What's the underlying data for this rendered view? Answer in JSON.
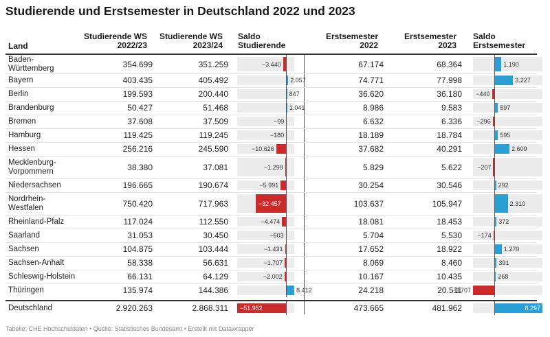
{
  "title": "Studierende und Erstsemester in Deutschland 2022 und 2023",
  "headers": {
    "land": "Land",
    "stud_2022": [
      "Studierende WS",
      "2022/23"
    ],
    "stud_2023": [
      "Studierende WS",
      "2023/24"
    ],
    "saldo_stud": [
      "Saldo",
      "Studierende"
    ],
    "erst_2022": [
      "Erstsemester",
      "2022"
    ],
    "erst_2023": [
      "Erstsemester",
      "2023"
    ],
    "saldo_erst": [
      "Saldo",
      "Erstsemester"
    ]
  },
  "colors": {
    "negative": "#cb2a2a",
    "positive": "#2b9fd4",
    "track": "#ececec"
  },
  "chart_data": {
    "type": "table",
    "columns": [
      "Land",
      "Studierende WS 2022/23",
      "Studierende WS 2023/24",
      "Saldo Studierende",
      "Erstsemester 2022",
      "Erstsemester 2023",
      "Saldo Erstsemester"
    ],
    "saldo_studierende_range": [
      -51952,
      8412
    ],
    "saldo_erstsemester_range": [
      -3707,
      8297
    ],
    "rows": [
      {
        "land": "Baden-Württemberg",
        "land_lines": [
          "Baden-",
          "Württemberg"
        ],
        "stud_2022": "354.699",
        "stud_2023": "351.259",
        "saldo_stud": -3440,
        "saldo_stud_label": "−3.440",
        "erst_2022": "67.174",
        "erst_2023": "68.364",
        "saldo_erst": 1190,
        "saldo_erst_label": "1.190"
      },
      {
        "land": "Bayern",
        "land_lines": [
          "Bayern"
        ],
        "stud_2022": "403.435",
        "stud_2023": "405.492",
        "saldo_stud": 2057,
        "saldo_stud_label": "2.057",
        "erst_2022": "74.771",
        "erst_2023": "77.998",
        "saldo_erst": 3227,
        "saldo_erst_label": "3.227"
      },
      {
        "land": "Berlin",
        "land_lines": [
          "Berlin"
        ],
        "stud_2022": "199.593",
        "stud_2023": "200.440",
        "saldo_stud": 847,
        "saldo_stud_label": "847",
        "erst_2022": "36.620",
        "erst_2023": "36.180",
        "saldo_erst": -440,
        "saldo_erst_label": "−440"
      },
      {
        "land": "Brandenburg",
        "land_lines": [
          "Brandenburg"
        ],
        "stud_2022": "50.427",
        "stud_2023": "51.468",
        "saldo_stud": 1041,
        "saldo_stud_label": "1.041",
        "erst_2022": "8.986",
        "erst_2023": "9.583",
        "saldo_erst": 597,
        "saldo_erst_label": "597"
      },
      {
        "land": "Bremen",
        "land_lines": [
          "Bremen"
        ],
        "stud_2022": "37.608",
        "stud_2023": "37.509",
        "saldo_stud": -99,
        "saldo_stud_label": "−99",
        "erst_2022": "6.632",
        "erst_2023": "6.336",
        "saldo_erst": -296,
        "saldo_erst_label": "−296"
      },
      {
        "land": "Hamburg",
        "land_lines": [
          "Hamburg"
        ],
        "stud_2022": "119.425",
        "stud_2023": "119.245",
        "saldo_stud": -180,
        "saldo_stud_label": "−180",
        "erst_2022": "18.189",
        "erst_2023": "18.784",
        "saldo_erst": 595,
        "saldo_erst_label": "595"
      },
      {
        "land": "Hessen",
        "land_lines": [
          "Hessen"
        ],
        "stud_2022": "256.216",
        "stud_2023": "245.590",
        "saldo_stud": -10626,
        "saldo_stud_label": "−10.626",
        "erst_2022": "37.682",
        "erst_2023": "40.291",
        "saldo_erst": 2609,
        "saldo_erst_label": "2.609"
      },
      {
        "land": "Mecklenburg-Vorpommern",
        "land_lines": [
          "Mecklenburg-",
          "Vorpommern"
        ],
        "stud_2022": "38.380",
        "stud_2023": "37.081",
        "saldo_stud": -1299,
        "saldo_stud_label": "−1.299",
        "erst_2022": "5.829",
        "erst_2023": "5.622",
        "saldo_erst": -207,
        "saldo_erst_label": "−207"
      },
      {
        "land": "Niedersachsen",
        "land_lines": [
          "Niedersachsen"
        ],
        "stud_2022": "196.665",
        "stud_2023": "190.674",
        "saldo_stud": -5991,
        "saldo_stud_label": "−5.991",
        "erst_2022": "30.254",
        "erst_2023": "30.546",
        "saldo_erst": 292,
        "saldo_erst_label": "292"
      },
      {
        "land": "Nordrhein-Westfalen",
        "land_lines": [
          "Nordrhein-",
          "Westfalen"
        ],
        "stud_2022": "750.420",
        "stud_2023": "717.963",
        "saldo_stud": -32457,
        "saldo_stud_label": "−32.457",
        "erst_2022": "103.637",
        "erst_2023": "105.947",
        "saldo_erst": 2310,
        "saldo_erst_label": "2.310"
      },
      {
        "land": "Rheinland-Pfalz",
        "land_lines": [
          "Rheinland-Pfalz"
        ],
        "stud_2022": "117.024",
        "stud_2023": "112.550",
        "saldo_stud": -4474,
        "saldo_stud_label": "−4.474",
        "erst_2022": "18.081",
        "erst_2023": "18.453",
        "saldo_erst": 372,
        "saldo_erst_label": "372"
      },
      {
        "land": "Saarland",
        "land_lines": [
          "Saarland"
        ],
        "stud_2022": "31.053",
        "stud_2023": "30.450",
        "saldo_stud": -603,
        "saldo_stud_label": "−603",
        "erst_2022": "5.704",
        "erst_2023": "5.530",
        "saldo_erst": -174,
        "saldo_erst_label": "−174"
      },
      {
        "land": "Sachsen",
        "land_lines": [
          "Sachsen"
        ],
        "stud_2022": "104.875",
        "stud_2023": "103.444",
        "saldo_stud": -1431,
        "saldo_stud_label": "−1.431",
        "erst_2022": "17.652",
        "erst_2023": "18.922",
        "saldo_erst": 1270,
        "saldo_erst_label": "1.270"
      },
      {
        "land": "Sachsen-Anhalt",
        "land_lines": [
          "Sachsen-Anhalt"
        ],
        "stud_2022": "58.338",
        "stud_2023": "56.631",
        "saldo_stud": -1707,
        "saldo_stud_label": "−1.707",
        "erst_2022": "8.069",
        "erst_2023": "8.460",
        "saldo_erst": 391,
        "saldo_erst_label": "391"
      },
      {
        "land": "Schleswig-Holstein",
        "land_lines": [
          "Schleswig-Holstein"
        ],
        "stud_2022": "66.131",
        "stud_2023": "64.129",
        "saldo_stud": -2002,
        "saldo_stud_label": "−2.002",
        "erst_2022": "10.167",
        "erst_2023": "10.435",
        "saldo_erst": 268,
        "saldo_erst_label": "268"
      },
      {
        "land": "Thüringen",
        "land_lines": [
          "Thüringen"
        ],
        "stud_2022": "135.974",
        "stud_2023": "144.386",
        "saldo_stud": 8412,
        "saldo_stud_label": "8.412",
        "erst_2022": "24.218",
        "erst_2023": "20.511",
        "saldo_erst": -3707,
        "saldo_erst_label": "−3.707"
      }
    ],
    "total": {
      "land": "Deutschland",
      "land_lines": [
        "Deutschland"
      ],
      "stud_2022": "2.920.263",
      "stud_2023": "2.868.311",
      "saldo_stud": -51952,
      "saldo_stud_label": "−51.952",
      "erst_2022": "473.665",
      "erst_2023": "481.962",
      "saldo_erst": 8297,
      "saldo_erst_label": "8.297"
    }
  },
  "footer": "Tabelle: CHE Hochschuldaten • Quelle: Statistisches Bundesamt • Erstellt mit Datawrapper"
}
